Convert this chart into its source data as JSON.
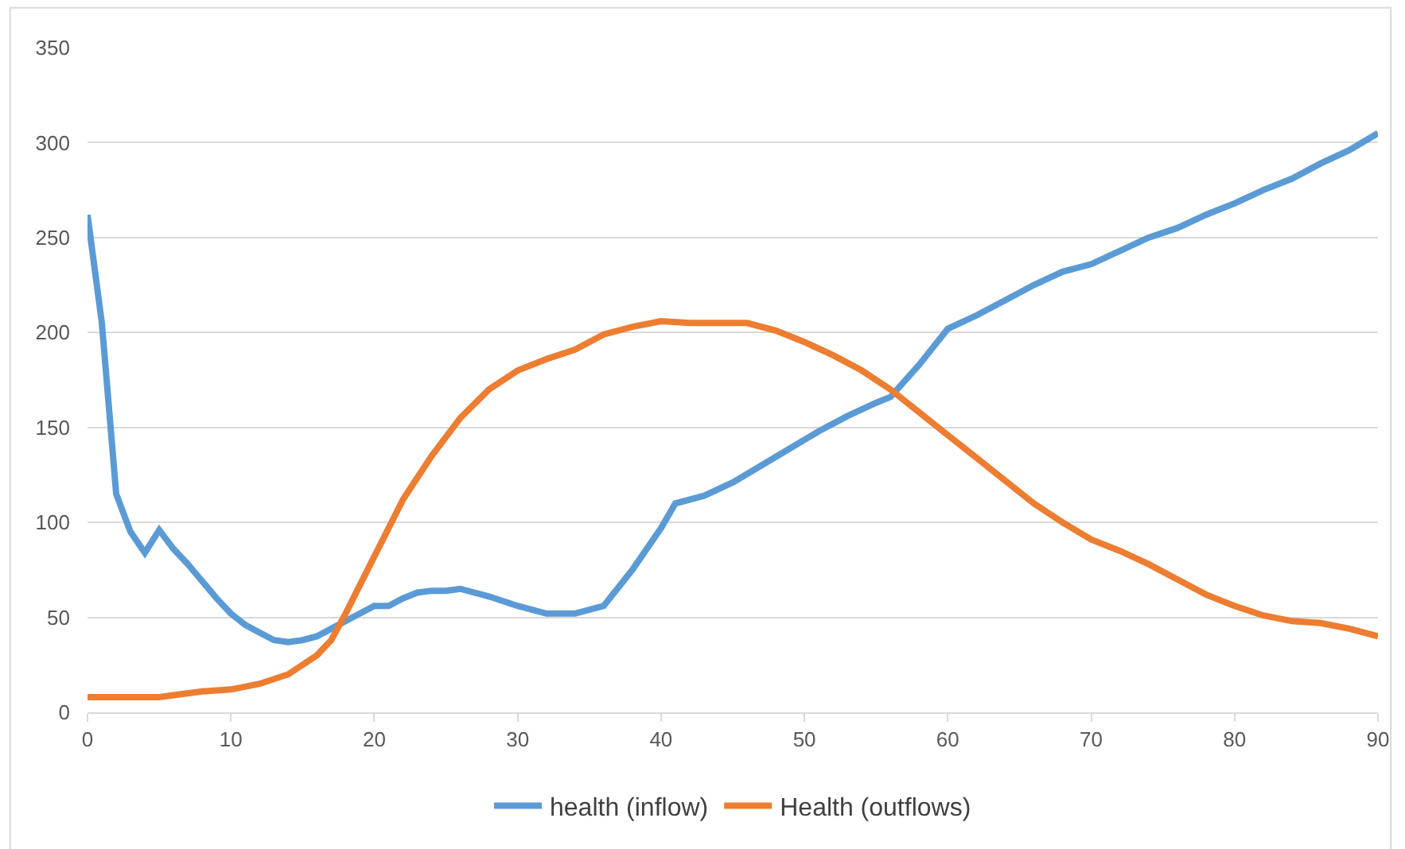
{
  "chart_data": {
    "type": "line",
    "xlim": [
      0,
      90
    ],
    "xticks": [
      0,
      10,
      20,
      30,
      40,
      50,
      60,
      70,
      80,
      90
    ],
    "ylim": [
      0,
      350
    ],
    "yticks": [
      0,
      50,
      100,
      150,
      200,
      250,
      300,
      350
    ],
    "grid": "y",
    "legend": "bottom",
    "marker": "none",
    "line_style": "solid",
    "series": [
      {
        "name": "health (inflow)",
        "color": "#5b9bd5",
        "x": [
          0,
          1,
          2,
          3,
          4,
          5,
          6,
          7,
          8,
          9,
          10,
          11,
          12,
          13,
          14,
          15,
          16,
          17,
          18,
          19,
          20,
          21,
          22,
          23,
          24,
          25,
          26,
          28,
          30,
          32,
          34,
          36,
          38,
          40,
          41,
          43,
          45,
          47,
          49,
          51,
          53,
          55,
          56,
          58,
          60,
          62,
          64,
          66,
          68,
          70,
          72,
          74,
          76,
          78,
          80,
          82,
          84,
          86,
          88,
          90
        ],
        "values": [
          262,
          205,
          115,
          95,
          84,
          96,
          86,
          78,
          69,
          60,
          52,
          46,
          42,
          38,
          37,
          38,
          40,
          44,
          48,
          52,
          56,
          56,
          60,
          63,
          64,
          64,
          65,
          61,
          56,
          52,
          52,
          56,
          75,
          97,
          110,
          114,
          121,
          130,
          139,
          148,
          156,
          163,
          166,
          183,
          202,
          209,
          217,
          225,
          232,
          236,
          243,
          250,
          255,
          262,
          268,
          275,
          281,
          289,
          296,
          305
        ]
      },
      {
        "name": "Health (outflows)",
        "color": "#ed7d31",
        "x": [
          0,
          5,
          6,
          8,
          10,
          12,
          14,
          16,
          17,
          18,
          20,
          22,
          24,
          26,
          28,
          30,
          32,
          34,
          36,
          38,
          40,
          42,
          44,
          46,
          48,
          50,
          52,
          54,
          56,
          58,
          60,
          62,
          64,
          66,
          68,
          70,
          72,
          74,
          76,
          78,
          80,
          82,
          84,
          86,
          88,
          90
        ],
        "values": [
          8,
          8,
          9,
          11,
          12,
          15,
          20,
          30,
          38,
          52,
          82,
          112,
          135,
          155,
          170,
          180,
          186,
          191,
          199,
          203,
          206,
          205,
          205,
          205,
          201,
          195,
          188,
          180,
          170,
          158,
          146,
          134,
          122,
          110,
          100,
          91,
          85,
          78,
          70,
          62,
          56,
          51,
          48,
          47,
          44,
          40
        ]
      }
    ]
  }
}
